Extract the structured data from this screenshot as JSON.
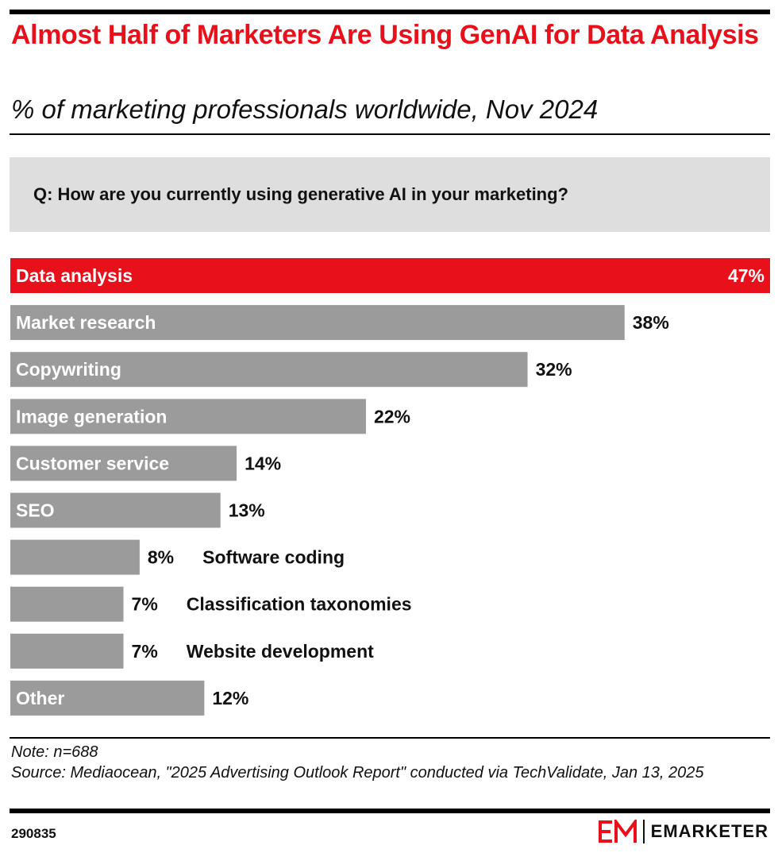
{
  "header": {
    "title": "Almost Half of Marketers Are Using GenAI for Data Analysis",
    "subtitle": "% of marketing professionals worldwide, Nov 2024",
    "question": "Q: How are you currently using generative AI in your marketing?"
  },
  "chart_data": {
    "type": "bar",
    "orientation": "horizontal",
    "categories": [
      "Data analysis",
      "Market research",
      "Copywriting",
      "Image generation",
      "Customer service",
      "SEO",
      "Software coding",
      "Classification taxonomies",
      "Website development",
      "Other"
    ],
    "values": [
      47,
      38,
      32,
      22,
      14,
      13,
      8,
      7,
      7,
      12
    ],
    "value_labels": [
      "47%",
      "38%",
      "32%",
      "22%",
      "14%",
      "13%",
      "8%",
      "7%",
      "7%",
      "12%"
    ],
    "highlight_index": 0,
    "colors": {
      "highlight": "#e8101a",
      "bar": "#9b9b9b",
      "label_inside": "#ffffff",
      "label_outside": "#111111"
    },
    "xlim": [
      0,
      47
    ]
  },
  "footer": {
    "note": "Note: n=688",
    "source": "Source: Mediaocean, \"2025 Advertising Outlook Report\" conducted via TechValidate, Jan 13, 2025",
    "chart_id": "290835",
    "brand": "EMARKETER",
    "brand_color": "#e8101a"
  }
}
